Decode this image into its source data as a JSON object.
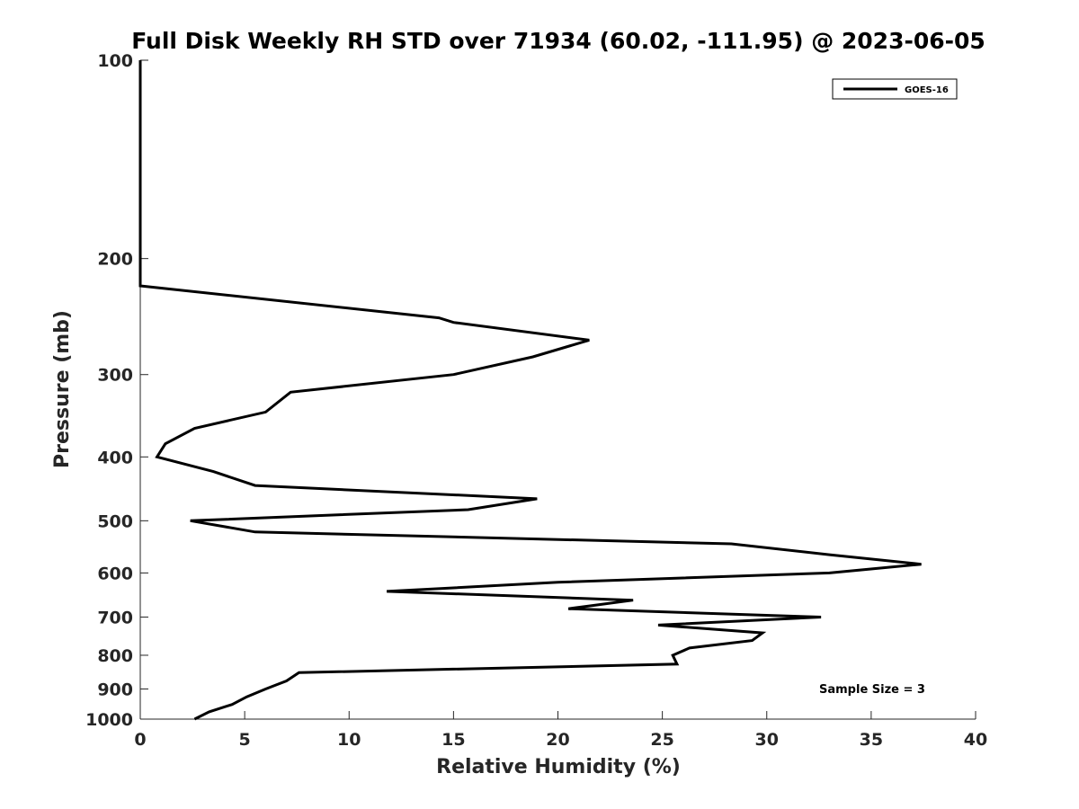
{
  "chart_data": {
    "type": "line",
    "title": "Full Disk Weekly RH STD over 71934 (60.02, -111.95) @ 2023-06-05",
    "xlabel": "Relative Humidity (%)",
    "ylabel": "Pressure (mb)",
    "xlim": [
      0,
      40
    ],
    "ylim": [
      100,
      1000
    ],
    "yscale": "log",
    "reversed_y": true,
    "grid": false,
    "xticks": [
      0,
      5,
      10,
      15,
      20,
      25,
      30,
      35,
      40
    ],
    "xtick_labels": [
      "0",
      "5",
      "10",
      "15",
      "20",
      "25",
      "30",
      "35",
      "40"
    ],
    "yticks": [
      100,
      200,
      300,
      400,
      500,
      600,
      700,
      800,
      900,
      1000
    ],
    "ytick_labels": [
      "100",
      "200",
      "300",
      "400",
      "500",
      "600",
      "700",
      "800",
      "900",
      "1000"
    ],
    "legend_position": "top-right",
    "series": [
      {
        "name": "GOES-16",
        "color": "#000000",
        "points": [
          [
            0.0,
            100
          ],
          [
            0.0,
            150
          ],
          [
            0.0,
            200
          ],
          [
            0.0,
            220
          ],
          [
            14.3,
            246
          ],
          [
            15.0,
            250
          ],
          [
            21.5,
            266
          ],
          [
            18.8,
            282
          ],
          [
            15.0,
            300
          ],
          [
            7.2,
            319
          ],
          [
            6.0,
            342
          ],
          [
            2.6,
            362
          ],
          [
            1.2,
            382
          ],
          [
            0.8,
            400
          ],
          [
            3.5,
            421
          ],
          [
            5.5,
            442
          ],
          [
            19.0,
            463
          ],
          [
            15.7,
            481
          ],
          [
            2.4,
            500
          ],
          [
            5.5,
            520
          ],
          [
            28.3,
            542
          ],
          [
            33.0,
            563
          ],
          [
            37.4,
            582
          ],
          [
            33.0,
            600
          ],
          [
            20.0,
            620
          ],
          [
            11.8,
            640
          ],
          [
            23.6,
            660
          ],
          [
            20.5,
            680
          ],
          [
            32.6,
            700
          ],
          [
            24.8,
            720
          ],
          [
            29.8,
            740
          ],
          [
            29.3,
            760
          ],
          [
            26.3,
            780
          ],
          [
            25.5,
            800
          ],
          [
            25.7,
            825
          ],
          [
            7.6,
            850
          ],
          [
            7.0,
            875
          ],
          [
            6.0,
            900
          ],
          [
            5.1,
            925
          ],
          [
            4.4,
            950
          ],
          [
            3.3,
            975
          ],
          [
            2.6,
            1000
          ]
        ]
      }
    ],
    "annotation": "Sample Size = 3"
  }
}
